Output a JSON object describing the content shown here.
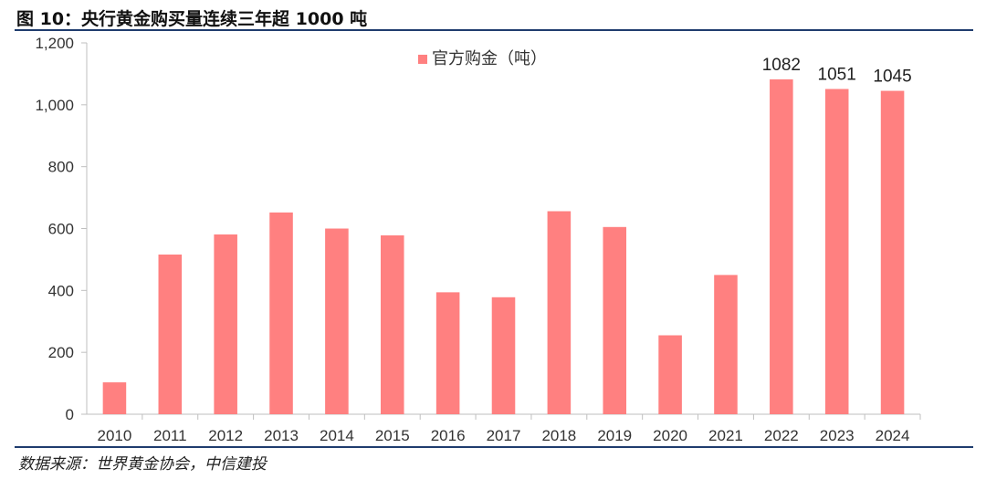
{
  "header": {
    "title": "图 10：央行黄金购买量连续三年超 1000 吨"
  },
  "footer": {
    "source": "数据来源：世界黄金协会，中信建投"
  },
  "colors": {
    "bar": "#ff8080",
    "rule": "#1f3c6e",
    "axis": "#bfbfbf"
  },
  "chart_data": {
    "type": "bar",
    "title": "",
    "xlabel": "",
    "ylabel": "",
    "ylim": [
      0,
      1200
    ],
    "yticks": [
      0,
      200,
      400,
      600,
      800,
      1000,
      1200
    ],
    "ytick_labels": [
      "0",
      "200",
      "400",
      "600",
      "800",
      "1,000",
      "1,200"
    ],
    "categories": [
      "2010",
      "2011",
      "2012",
      "2013",
      "2014",
      "2015",
      "2016",
      "2017",
      "2018",
      "2019",
      "2020",
      "2021",
      "2022",
      "2023",
      "2024"
    ],
    "series": [
      {
        "name": "官方购金（吨）",
        "values": [
          103,
          516,
          581,
          652,
          600,
          578,
          394,
          378,
          656,
          605,
          255,
          450,
          1082,
          1051,
          1045
        ]
      }
    ],
    "data_labels": {
      "2022": "1082",
      "2023": "1051",
      "2024": "1045"
    },
    "legend_position": "top-center",
    "grid": false
  }
}
